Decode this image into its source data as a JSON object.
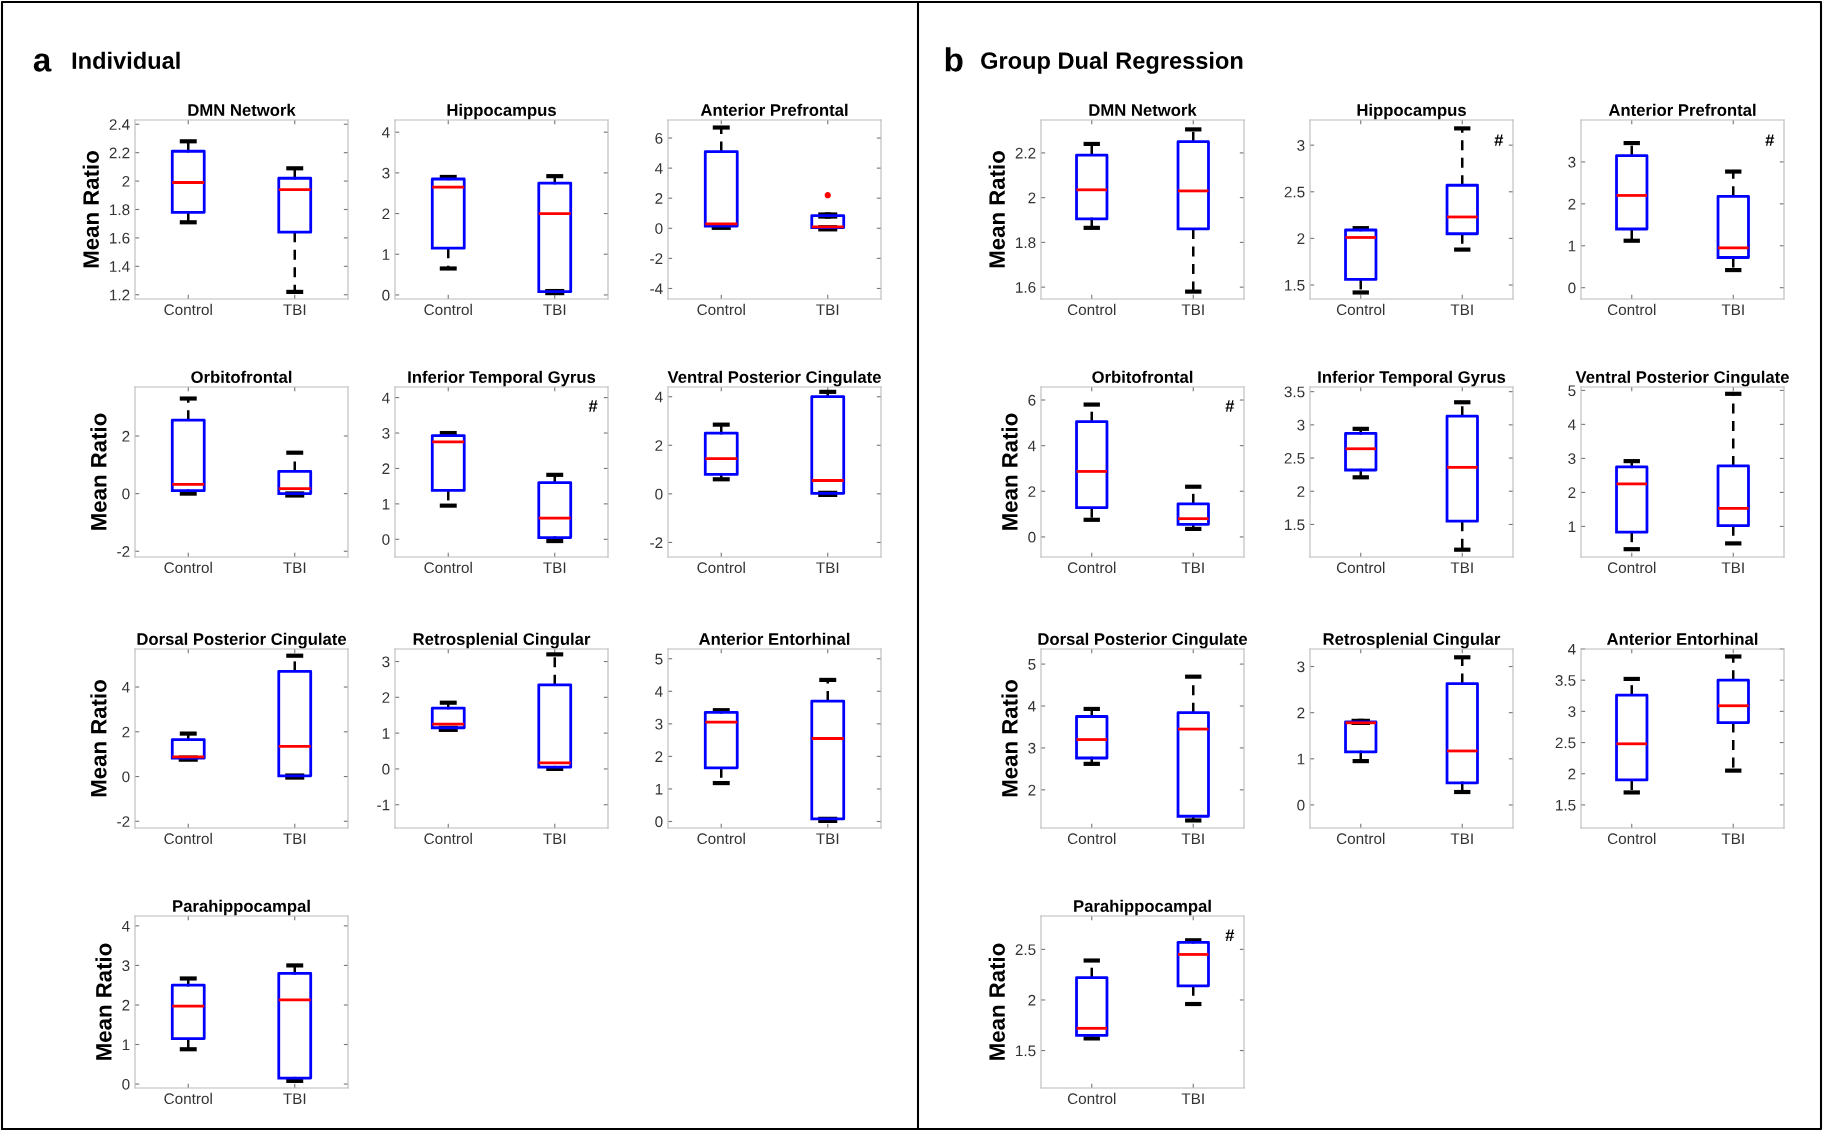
{
  "chart_data": [
    {
      "type": "box",
      "title": "DMN Network",
      "ylabel": "Mean Ratio",
      "annotations": [
        "a",
        "Individual"
      ],
      "categories": [
        "Control",
        "TBI"
      ],
      "ylim": [
        1.17,
        2.43
      ],
      "yticks": [
        1.2,
        1.4,
        1.6,
        1.8,
        2,
        2.2,
        2.4
      ],
      "series": [
        {
          "color": "#0000ff",
          "boxes": [
            {
              "low": 1.71,
              "q1": 1.78,
              "median": 1.99,
              "q3": 2.21,
              "high": 2.28
            },
            {
              "low": 1.22,
              "q1": 1.64,
              "median": 1.94,
              "q3": 2.02,
              "high": 2.09
            }
          ]
        }
      ]
    },
    {
      "type": "box",
      "title": "Hippocampus",
      "categories": [
        "Control",
        "TBI"
      ],
      "ylim": [
        -0.1,
        4.3
      ],
      "yticks": [
        0,
        1,
        2,
        3,
        4
      ],
      "series": [
        {
          "color": "#0000ff",
          "boxes": [
            {
              "low": 0.65,
              "q1": 1.15,
              "median": 2.65,
              "q3": 2.85,
              "high": 2.9
            },
            {
              "low": 0.07,
              "q1": 0.08,
              "median": 2.0,
              "q3": 2.75,
              "high": 2.92
            }
          ]
        }
      ]
    },
    {
      "type": "box",
      "title": "Anterior Prefrontal",
      "categories": [
        "Control",
        "TBI"
      ],
      "ylim": [
        -4.7,
        7.2
      ],
      "yticks": [
        -4,
        -2,
        0,
        2,
        4,
        6
      ],
      "series": [
        {
          "color": "#0000ff",
          "boxes": [
            {
              "low": 0.1,
              "q1": 0.15,
              "median": 0.3,
              "q3": 5.1,
              "high": 6.7
            },
            {
              "low": 0.0,
              "q1": 0.05,
              "median": 0.1,
              "q3": 0.85,
              "high": 0.85,
              "outliers": [
                2.2
              ]
            }
          ]
        }
      ]
    },
    {
      "type": "box",
      "title": "Orbitofrontal",
      "ylabel": "Mean Ratio",
      "categories": [
        "Control",
        "TBI"
      ],
      "ylim": [
        -2.2,
        3.7
      ],
      "yticks": [
        -2,
        0,
        2
      ],
      "series": [
        {
          "color": "#0000ff",
          "boxes": [
            {
              "low": 0.0,
              "q1": 0.1,
              "median": 0.32,
              "q3": 2.55,
              "high": 3.3
            },
            {
              "low": -0.03,
              "q1": 0.0,
              "median": 0.17,
              "q3": 0.77,
              "high": 1.42
            }
          ]
        }
      ]
    },
    {
      "type": "box",
      "title": "Inferior Temporal Gyrus",
      "annotations": [
        "#"
      ],
      "categories": [
        "Control",
        "TBI"
      ],
      "ylim": [
        -0.5,
        4.3
      ],
      "yticks": [
        0,
        1,
        2,
        3,
        4
      ],
      "series": [
        {
          "color": "#0000ff",
          "boxes": [
            {
              "low": 0.95,
              "q1": 1.38,
              "median": 2.75,
              "q3": 2.93,
              "high": 3.0
            },
            {
              "low": -0.05,
              "q1": 0.05,
              "median": 0.6,
              "q3": 1.6,
              "high": 1.82
            }
          ]
        }
      ]
    },
    {
      "type": "box",
      "title": "Ventral Posterior Cingulate",
      "categories": [
        "Control",
        "TBI"
      ],
      "ylim": [
        -2.6,
        4.4
      ],
      "yticks": [
        -2,
        0,
        2,
        4
      ],
      "series": [
        {
          "color": "#0000ff",
          "boxes": [
            {
              "low": 0.6,
              "q1": 0.8,
              "median": 1.45,
              "q3": 2.5,
              "high": 2.85
            },
            {
              "low": 0.0,
              "q1": 0.02,
              "median": 0.55,
              "q3": 4.0,
              "high": 4.2
            }
          ]
        }
      ]
    },
    {
      "type": "box",
      "title": "Dorsal Posterior Cingulate",
      "ylabel": "Mean Ratio",
      "categories": [
        "Control",
        "TBI"
      ],
      "ylim": [
        -2.3,
        5.7
      ],
      "yticks": [
        -2,
        0,
        2,
        4
      ],
      "series": [
        {
          "color": "#0000ff",
          "boxes": [
            {
              "low": 0.8,
              "q1": 0.82,
              "median": 0.88,
              "q3": 1.65,
              "high": 1.92
            },
            {
              "low": 0.0,
              "q1": 0.03,
              "median": 1.35,
              "q3": 4.7,
              "high": 5.4
            }
          ]
        }
      ]
    },
    {
      "type": "box",
      "title": "Retrosplenial Cingular",
      "categories": [
        "Control",
        "TBI"
      ],
      "ylim": [
        -1.65,
        3.35
      ],
      "yticks": [
        -1,
        0,
        1,
        2,
        3
      ],
      "series": [
        {
          "color": "#0000ff",
          "boxes": [
            {
              "low": 1.12,
              "q1": 1.15,
              "median": 1.25,
              "q3": 1.7,
              "high": 1.85
            },
            {
              "low": 0.0,
              "q1": 0.05,
              "median": 0.17,
              "q3": 2.35,
              "high": 3.2
            }
          ]
        }
      ]
    },
    {
      "type": "box",
      "title": "Anterior Entorhinal",
      "categories": [
        "Control",
        "TBI"
      ],
      "ylim": [
        -0.2,
        5.3
      ],
      "yticks": [
        0,
        1,
        2,
        3,
        4,
        5
      ],
      "series": [
        {
          "color": "#0000ff",
          "boxes": [
            {
              "low": 1.18,
              "q1": 1.65,
              "median": 3.05,
              "q3": 3.35,
              "high": 3.42
            },
            {
              "low": 0.05,
              "q1": 0.08,
              "median": 2.55,
              "q3": 3.7,
              "high": 4.35
            }
          ]
        }
      ]
    },
    {
      "type": "box",
      "title": "Parahippocampal",
      "ylabel": "Mean Ratio",
      "categories": [
        "Control",
        "TBI"
      ],
      "ylim": [
        -0.1,
        4.25
      ],
      "yticks": [
        0,
        1,
        2,
        3,
        4
      ],
      "series": [
        {
          "color": "#0000ff",
          "boxes": [
            {
              "low": 0.88,
              "q1": 1.15,
              "median": 1.97,
              "q3": 2.5,
              "high": 2.67
            },
            {
              "low": 0.08,
              "q1": 0.15,
              "median": 2.13,
              "q3": 2.8,
              "high": 3.0
            }
          ]
        }
      ]
    },
    {
      "type": "box",
      "title": "DMN Network",
      "ylabel": "Mean Ratio",
      "annotations": [
        "b",
        "Group Dual Regression"
      ],
      "categories": [
        "Control",
        "TBI"
      ],
      "ylim": [
        1.547,
        2.347
      ],
      "yticks": [
        1.6,
        1.8,
        2,
        2.2
      ],
      "series": [
        {
          "color": "#0000ff",
          "boxes": [
            {
              "low": 1.865,
              "q1": 1.905,
              "median": 2.035,
              "q3": 2.19,
              "high": 2.24
            },
            {
              "low": 1.58,
              "q1": 1.86,
              "median": 2.03,
              "q3": 2.25,
              "high": 2.305
            }
          ]
        }
      ]
    },
    {
      "type": "box",
      "title": "Hippocampus",
      "annotations": [
        "#"
      ],
      "categories": [
        "Control",
        "TBI"
      ],
      "ylim": [
        1.35,
        3.27
      ],
      "yticks": [
        1.5,
        2,
        2.5,
        3
      ],
      "series": [
        {
          "color": "#0000ff",
          "boxes": [
            {
              "low": 1.42,
              "q1": 1.56,
              "median": 2.01,
              "q3": 2.09,
              "high": 2.11
            },
            {
              "low": 1.88,
              "q1": 2.05,
              "median": 2.23,
              "q3": 2.57,
              "high": 3.18
            }
          ]
        }
      ]
    },
    {
      "type": "box",
      "title": "Anterior Prefrontal",
      "annotations": [
        "#"
      ],
      "categories": [
        "Control",
        "TBI"
      ],
      "ylim": [
        -0.27,
        4.0
      ],
      "yticks": [
        0,
        1,
        2,
        3
      ],
      "series": [
        {
          "color": "#0000ff",
          "boxes": [
            {
              "low": 1.12,
              "q1": 1.4,
              "median": 2.2,
              "q3": 3.15,
              "high": 3.45
            },
            {
              "low": 0.42,
              "q1": 0.72,
              "median": 0.95,
              "q3": 2.18,
              "high": 2.77
            }
          ]
        }
      ]
    },
    {
      "type": "box",
      "title": "Orbitofrontal",
      "ylabel": "Mean Ratio",
      "annotations": [
        "#"
      ],
      "categories": [
        "Control",
        "TBI"
      ],
      "ylim": [
        -0.88,
        6.57
      ],
      "yticks": [
        0,
        2,
        4,
        6
      ],
      "series": [
        {
          "color": "#0000ff",
          "boxes": [
            {
              "low": 0.75,
              "q1": 1.28,
              "median": 2.87,
              "q3": 5.05,
              "high": 5.8
            },
            {
              "low": 0.35,
              "q1": 0.55,
              "median": 0.8,
              "q3": 1.45,
              "high": 2.2
            }
          ]
        }
      ]
    },
    {
      "type": "box",
      "title": "Inferior Temporal Gyrus",
      "categories": [
        "Control",
        "TBI"
      ],
      "ylim": [
        1.01,
        3.57
      ],
      "yticks": [
        1.5,
        2,
        2.5,
        3,
        3.5
      ],
      "series": [
        {
          "color": "#0000ff",
          "boxes": [
            {
              "low": 2.21,
              "q1": 2.32,
              "median": 2.64,
              "q3": 2.87,
              "high": 2.94
            },
            {
              "low": 1.12,
              "q1": 1.55,
              "median": 2.36,
              "q3": 3.13,
              "high": 3.34
            }
          ]
        }
      ]
    },
    {
      "type": "box",
      "title": "Ventral Posterior Cingulate",
      "categories": [
        "Control",
        "TBI"
      ],
      "ylim": [
        0.1,
        5.1
      ],
      "yticks": [
        1,
        2,
        3,
        4,
        5
      ],
      "series": [
        {
          "color": "#0000ff",
          "boxes": [
            {
              "low": 0.33,
              "q1": 0.83,
              "median": 2.25,
              "q3": 2.75,
              "high": 2.92
            },
            {
              "low": 0.5,
              "q1": 1.02,
              "median": 1.53,
              "q3": 2.78,
              "high": 4.9
            }
          ]
        }
      ]
    },
    {
      "type": "box",
      "title": "Dorsal Posterior Cingulate",
      "ylabel": "Mean Ratio",
      "categories": [
        "Control",
        "TBI"
      ],
      "ylim": [
        1.09,
        5.36
      ],
      "yticks": [
        2,
        3,
        4,
        5
      ],
      "series": [
        {
          "color": "#0000ff",
          "boxes": [
            {
              "low": 2.62,
              "q1": 2.76,
              "median": 3.2,
              "q3": 3.75,
              "high": 3.93
            },
            {
              "low": 1.27,
              "q1": 1.37,
              "median": 3.45,
              "q3": 3.84,
              "high": 4.7
            }
          ]
        }
      ]
    },
    {
      "type": "box",
      "title": "Retrosplenial Cingular",
      "categories": [
        "Control",
        "TBI"
      ],
      "ylim": [
        -0.5,
        3.38
      ],
      "yticks": [
        0,
        1,
        2,
        3
      ],
      "series": [
        {
          "color": "#0000ff",
          "boxes": [
            {
              "low": 0.95,
              "q1": 1.15,
              "median": 1.78,
              "q3": 1.8,
              "high": 1.8
            },
            {
              "low": 0.28,
              "q1": 0.48,
              "median": 1.17,
              "q3": 2.63,
              "high": 3.2
            }
          ]
        }
      ]
    },
    {
      "type": "box",
      "title": "Anterior Entorhinal",
      "categories": [
        "Control",
        "TBI"
      ],
      "ylim": [
        1.13,
        4.0
      ],
      "yticks": [
        1.5,
        2,
        2.5,
        3,
        3.5,
        4
      ],
      "series": [
        {
          "color": "#0000ff",
          "boxes": [
            {
              "low": 1.7,
              "q1": 1.9,
              "median": 2.48,
              "q3": 3.26,
              "high": 3.52
            },
            {
              "low": 2.05,
              "q1": 2.82,
              "median": 3.09,
              "q3": 3.5,
              "high": 3.88
            }
          ]
        }
      ]
    },
    {
      "type": "box",
      "title": "Parahippocampal",
      "ylabel": "Mean Ratio",
      "annotations": [
        "#"
      ],
      "categories": [
        "Control",
        "TBI"
      ],
      "ylim": [
        1.13,
        2.83
      ],
      "yticks": [
        1.5,
        2,
        2.5
      ],
      "series": [
        {
          "color": "#0000ff",
          "boxes": [
            {
              "low": 1.62,
              "q1": 1.65,
              "median": 1.72,
              "q3": 2.22,
              "high": 2.39
            },
            {
              "low": 1.96,
              "q1": 2.14,
              "median": 2.45,
              "q3": 2.57,
              "high": 2.59
            }
          ]
        }
      ]
    }
  ]
}
